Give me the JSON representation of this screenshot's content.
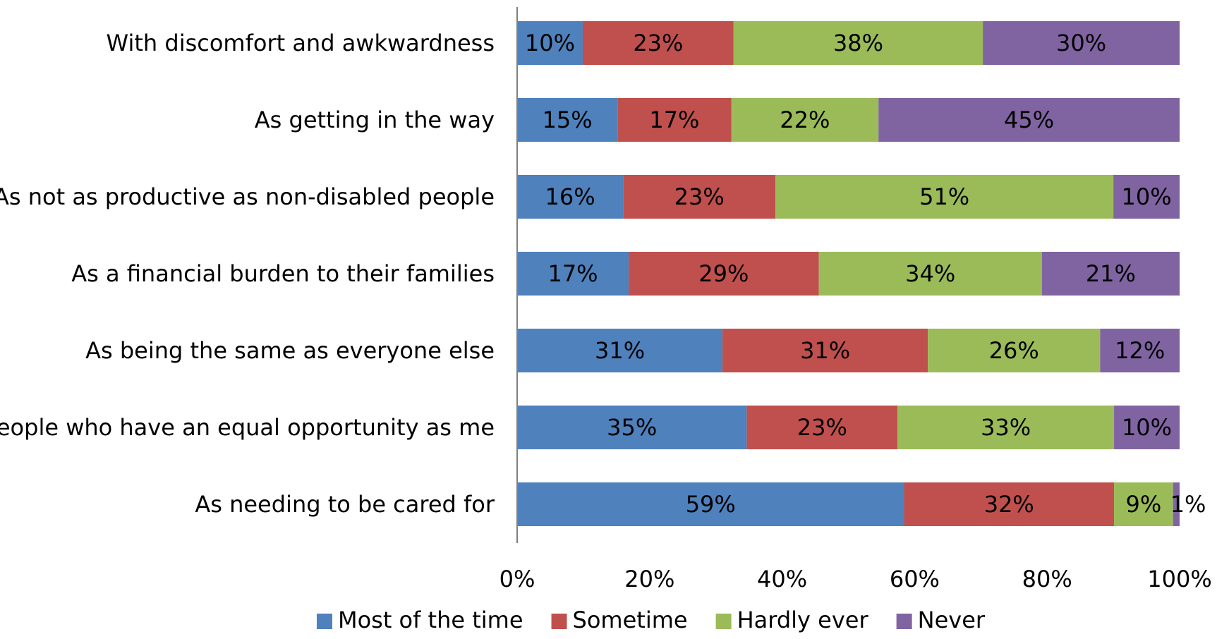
{
  "chart_data": {
    "type": "bar",
    "orientation": "horizontal",
    "stacked": true,
    "percent_stacked": true,
    "title": "",
    "xlabel": "",
    "ylabel": "",
    "categories": [
      "With discomfort and awkwardness",
      "As getting in the way",
      "As not as productive as non-disabled people",
      "As a financial burden to their families",
      "As being the same as everyone else",
      "People who have an equal opportunity as me",
      "As needing to be cared for"
    ],
    "series": [
      {
        "name": "Most of the time",
        "color": "#4F81BD",
        "values": [
          10,
          15,
          16,
          17,
          31,
          35,
          59
        ],
        "labels": [
          "10%",
          "15%",
          "16%",
          "17%",
          "31%",
          "35%",
          "59%"
        ]
      },
      {
        "name": "Sometime",
        "color": "#C0504D",
        "values": [
          23,
          17,
          23,
          29,
          31,
          23,
          32
        ],
        "labels": [
          "23%",
          "17%",
          "23%",
          "29%",
          "31%",
          "23%",
          "32%"
        ]
      },
      {
        "name": "Hardly ever",
        "color": "#9BBB59",
        "values": [
          38,
          22,
          51,
          34,
          26,
          33,
          9
        ],
        "labels": [
          "38%",
          "22%",
          "51%",
          "34%",
          "26%",
          "33%",
          "9%"
        ]
      },
      {
        "name": "Never",
        "color": "#8064A2",
        "values": [
          30,
          45,
          10,
          21,
          12,
          10,
          1
        ],
        "labels": [
          "30%",
          "45%",
          "10%",
          "21%",
          "12%",
          "10%",
          "1%"
        ]
      }
    ],
    "xlim": [
      0,
      100
    ],
    "xticks": [
      "0%",
      "20%",
      "40%",
      "60%",
      "80%",
      "100%"
    ],
    "grid": false,
    "legend_position": "bottom"
  }
}
